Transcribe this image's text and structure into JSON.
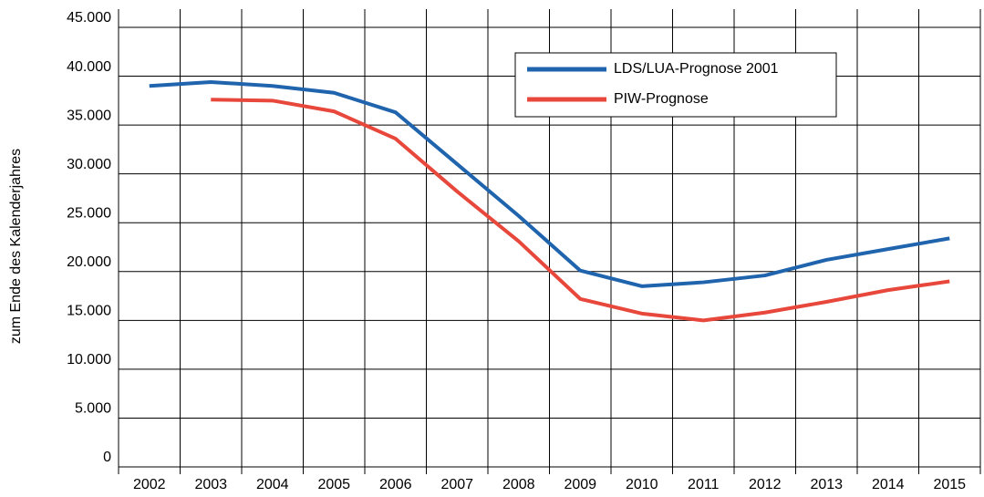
{
  "chart_data": {
    "type": "line",
    "y_label": "zum Ende des Kalenderjahres",
    "categories": [
      "2002",
      "2003",
      "2004",
      "2005",
      "2006",
      "2007",
      "2008",
      "2009",
      "2010",
      "2011",
      "2012",
      "2013",
      "2014",
      "2015"
    ],
    "series": [
      {
        "name": "LDS/LUA-Prognose 2001",
        "color": "#1f64ad",
        "values": [
          39000,
          39400,
          39000,
          38300,
          36300,
          31000,
          25700,
          20100,
          18500,
          18900,
          19600,
          21200,
          22300,
          23400
        ]
      },
      {
        "name": "PIW-Prognose",
        "color": "#e8473b",
        "values": [
          null,
          37600,
          37500,
          36400,
          33600,
          28200,
          23100,
          17200,
          15700,
          15000,
          15800,
          16900,
          18100,
          19000
        ]
      }
    ],
    "ylim": [
      0,
      45000
    ],
    "yticks": [
      0,
      {
        "value": 5000,
        "label": "5.000"
      },
      {
        "value": 10000,
        "label": "10.000"
      },
      {
        "value": 15000,
        "label": "15.000"
      },
      {
        "value": 20000,
        "label": "20.000"
      },
      {
        "value": 25000,
        "label": "25.000"
      },
      {
        "value": 30000,
        "label": "30.000"
      },
      {
        "value": 35000,
        "label": "35.000"
      },
      {
        "value": 40000,
        "label": "40.000"
      },
      {
        "value": 45000,
        "label": "45.000"
      }
    ],
    "grid": true,
    "legend": "top-right"
  }
}
